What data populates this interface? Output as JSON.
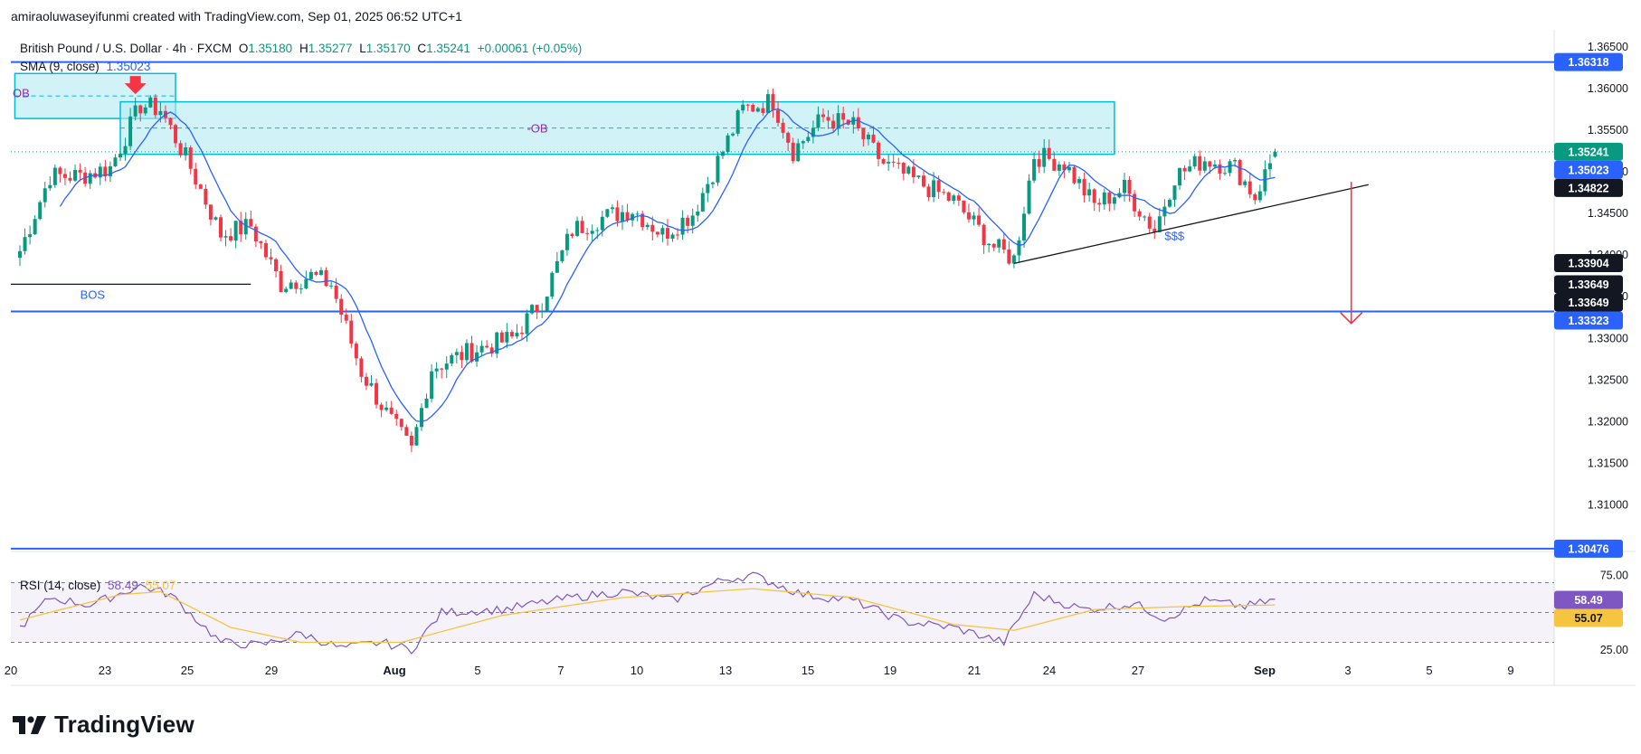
{
  "header": {
    "credit": "amiraoluwaseyifunmi created with TradingView.com, Sep 01, 2025 06:52 UTC+1"
  },
  "legend": {
    "symbol": "British Pound / U.S. Dollar · 4h · FXCM",
    "open_label": "O",
    "open": "1.35180",
    "high_label": "H",
    "high": "1.35277",
    "low_label": "L",
    "low": "1.35170",
    "close_label": "C",
    "close": "1.35241",
    "change": "+0.00061 (+0.05%)",
    "sma_label": "SMA (9, close)",
    "sma_value": "1.35023",
    "rsi_label": "RSI (14, close)",
    "rsi_value": "58.49",
    "rsi_ma_value": "55.07"
  },
  "brand": {
    "name": "TradingView"
  },
  "colors": {
    "up": "#089981",
    "down": "#f23645",
    "sma": "#2962ff",
    "hline": "#2962ff",
    "zone_fill": "#b2ebf2",
    "zone_border": "#00bcd4",
    "ob_text": "#9c27b0",
    "rsi_line": "#7e57c2",
    "rsi_ma": "#f5c542",
    "arrow": "#f23645"
  },
  "chart_data": [
    {
      "type": "candlestick",
      "symbol": "GBPUSD",
      "timeframe": "4h",
      "ylim": [
        1.3055,
        1.3665
      ],
      "y_ticks": [
        "1.36500",
        "1.36000",
        "1.35500",
        "1.35000",
        "1.34500",
        "1.34000",
        "1.33500",
        "1.33000",
        "1.32500",
        "1.32000",
        "1.31500",
        "1.31000"
      ],
      "x_ticks": [
        "20",
        "23",
        "25",
        "29",
        "Aug",
        "5",
        "7",
        "10",
        "13",
        "15",
        "19",
        "21",
        "24",
        "27",
        "Sep",
        "3",
        "5",
        "9"
      ],
      "price_path": [
        {
          "bar": 0,
          "price": 1.3405
        },
        {
          "bar": 6,
          "price": 1.3495
        },
        {
          "bar": 12,
          "price": 1.3495
        },
        {
          "bar": 18,
          "price": 1.3505
        },
        {
          "bar": 24,
          "price": 1.358
        },
        {
          "bar": 28,
          "price": 1.3575
        },
        {
          "bar": 34,
          "price": 1.3505
        },
        {
          "bar": 40,
          "price": 1.3425
        },
        {
          "bar": 46,
          "price": 1.3435
        },
        {
          "bar": 52,
          "price": 1.3365
        },
        {
          "bar": 58,
          "price": 1.3375
        },
        {
          "bar": 62,
          "price": 1.3365
        },
        {
          "bar": 68,
          "price": 1.326
        },
        {
          "bar": 74,
          "price": 1.32
        },
        {
          "bar": 78,
          "price": 1.3165
        },
        {
          "bar": 82,
          "price": 1.3265
        },
        {
          "bar": 90,
          "price": 1.3285
        },
        {
          "bar": 98,
          "price": 1.33
        },
        {
          "bar": 104,
          "price": 1.3345
        },
        {
          "bar": 110,
          "price": 1.343
        },
        {
          "bar": 116,
          "price": 1.3445
        },
        {
          "bar": 122,
          "price": 1.3455
        },
        {
          "bar": 128,
          "price": 1.3425
        },
        {
          "bar": 134,
          "price": 1.345
        },
        {
          "bar": 140,
          "price": 1.3525
        },
        {
          "bar": 144,
          "price": 1.3575
        },
        {
          "bar": 150,
          "price": 1.3585
        },
        {
          "bar": 154,
          "price": 1.3525
        },
        {
          "bar": 160,
          "price": 1.3565
        },
        {
          "bar": 166,
          "price": 1.3555
        },
        {
          "bar": 172,
          "price": 1.351
        },
        {
          "bar": 178,
          "price": 1.349
        },
        {
          "bar": 186,
          "price": 1.3465
        },
        {
          "bar": 194,
          "price": 1.341
        },
        {
          "bar": 198,
          "price": 1.3395
        },
        {
          "bar": 202,
          "price": 1.352
        },
        {
          "bar": 208,
          "price": 1.351
        },
        {
          "bar": 214,
          "price": 1.346
        },
        {
          "bar": 220,
          "price": 1.348
        },
        {
          "bar": 226,
          "price": 1.343
        },
        {
          "bar": 230,
          "price": 1.3495
        },
        {
          "bar": 236,
          "price": 1.3515
        },
        {
          "bar": 242,
          "price": 1.3505
        },
        {
          "bar": 246,
          "price": 1.347
        },
        {
          "bar": 250,
          "price": 1.3524
        }
      ],
      "last_candle": {
        "open": 1.3518,
        "high": 1.35277,
        "low": 1.3517,
        "close": 1.35241
      },
      "sma": {
        "period": 9,
        "last": 1.35023
      },
      "horizontal_lines": [
        1.36318,
        1.33323,
        1.30476
      ],
      "price_tags": [
        {
          "value": "1.36318",
          "price": 1.36318,
          "style": "blue"
        },
        {
          "value": "1.35241",
          "price": 1.35241,
          "style": "green"
        },
        {
          "value": "1.35023",
          "price": 1.35023,
          "style": "blue"
        },
        {
          "value": "1.34822",
          "price": 1.34822,
          "style": "black"
        },
        {
          "value": "1.33904",
          "price": 1.33904,
          "style": "black"
        },
        {
          "value": "1.33649",
          "price": 1.33649,
          "style": "black"
        },
        {
          "value": "1.33649",
          "price": 1.33649,
          "style": "black"
        },
        {
          "value": "1.33323",
          "price": 1.33323,
          "style": "blue"
        },
        {
          "value": "1.30476",
          "price": 1.30476,
          "style": "blue"
        }
      ],
      "order_blocks": [
        {
          "label": "OB",
          "bar_start": -1,
          "bar_end": 31,
          "top": 1.3618,
          "bottom": 1.3564
        },
        {
          "label": "-OB",
          "bar_start": 20,
          "bar_end": 218,
          "top": 1.3584,
          "bottom": 1.3521
        }
      ],
      "bos": {
        "label": "BOS",
        "price": 1.3365,
        "bar_start": -1,
        "bar_end": 46
      },
      "trendline": {
        "label": "$$$",
        "from": {
          "bar": 198,
          "price": 1.339
        },
        "to": {
          "bar": 256,
          "price": 1.3478
        }
      },
      "projection_arrow": {
        "bar": 254,
        "from": 1.3488,
        "to": 1.3318
      }
    },
    {
      "type": "line",
      "title": "RSI (14, close)",
      "ylim": [
        20,
        80
      ],
      "y_ticks": [
        "75.00",
        "25.00"
      ],
      "bands": [
        70,
        50,
        30
      ],
      "rsi_path": [
        {
          "bar": 0,
          "value": 40
        },
        {
          "bar": 6,
          "value": 60
        },
        {
          "bar": 14,
          "value": 55
        },
        {
          "bar": 24,
          "value": 68
        },
        {
          "bar": 30,
          "value": 62
        },
        {
          "bar": 40,
          "value": 30
        },
        {
          "bar": 48,
          "value": 28
        },
        {
          "bar": 56,
          "value": 36
        },
        {
          "bar": 64,
          "value": 26
        },
        {
          "bar": 72,
          "value": 30
        },
        {
          "bar": 78,
          "value": 25
        },
        {
          "bar": 84,
          "value": 50
        },
        {
          "bar": 96,
          "value": 52
        },
        {
          "bar": 110,
          "value": 60
        },
        {
          "bar": 120,
          "value": 64
        },
        {
          "bar": 130,
          "value": 58
        },
        {
          "bar": 140,
          "value": 72
        },
        {
          "bar": 146,
          "value": 75
        },
        {
          "bar": 156,
          "value": 62
        },
        {
          "bar": 166,
          "value": 58
        },
        {
          "bar": 176,
          "value": 44
        },
        {
          "bar": 186,
          "value": 40
        },
        {
          "bar": 196,
          "value": 30
        },
        {
          "bar": 202,
          "value": 62
        },
        {
          "bar": 212,
          "value": 52
        },
        {
          "bar": 222,
          "value": 56
        },
        {
          "bar": 228,
          "value": 46
        },
        {
          "bar": 236,
          "value": 58
        },
        {
          "bar": 244,
          "value": 54
        },
        {
          "bar": 250,
          "value": 58.49
        }
      ],
      "rsi_ma_path": [
        {
          "bar": 0,
          "value": 45
        },
        {
          "bar": 20,
          "value": 62
        },
        {
          "bar": 28,
          "value": 64
        },
        {
          "bar": 42,
          "value": 40
        },
        {
          "bar": 56,
          "value": 30
        },
        {
          "bar": 76,
          "value": 30
        },
        {
          "bar": 96,
          "value": 48
        },
        {
          "bar": 120,
          "value": 60
        },
        {
          "bar": 146,
          "value": 66
        },
        {
          "bar": 166,
          "value": 60
        },
        {
          "bar": 186,
          "value": 42
        },
        {
          "bar": 198,
          "value": 38
        },
        {
          "bar": 214,
          "value": 52
        },
        {
          "bar": 232,
          "value": 54
        },
        {
          "bar": 250,
          "value": 55.07
        }
      ],
      "tags": [
        {
          "value": "58.49",
          "level": 58.49,
          "style": "purple"
        },
        {
          "value": "55.07",
          "level": 55.07,
          "style": "yellow"
        }
      ]
    }
  ]
}
